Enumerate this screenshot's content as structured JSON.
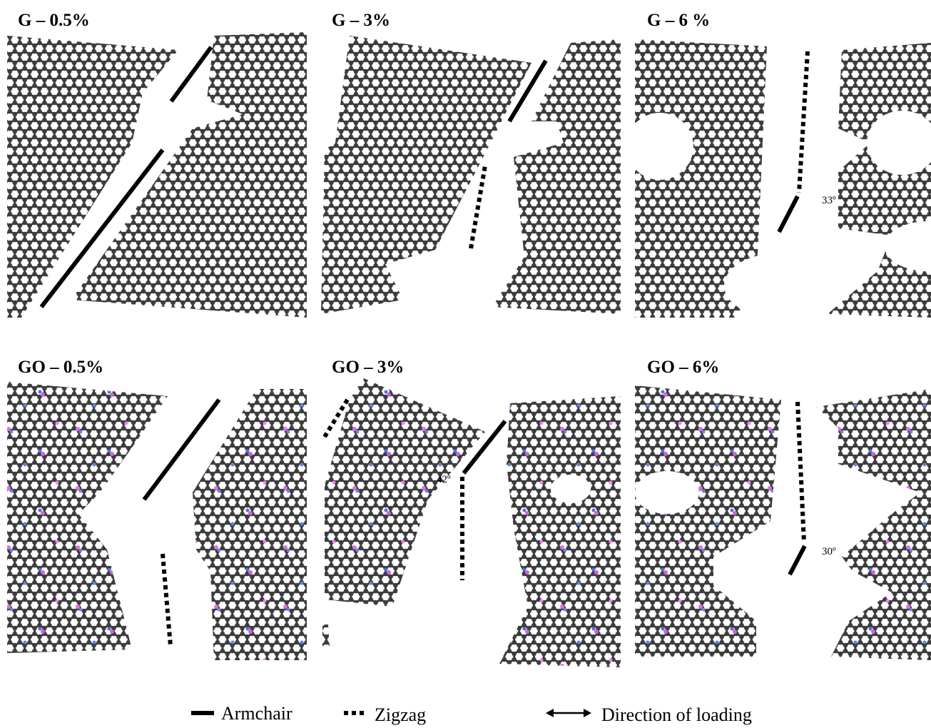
{
  "panels": [
    {
      "title": "G – 0.5%"
    },
    {
      "title": "G – 3%"
    },
    {
      "title": "G – 6 %",
      "angle": "33º"
    },
    {
      "title": "GO – 0.5%"
    },
    {
      "title": "GO – 3%",
      "angle": "42º"
    },
    {
      "title": "GO – 6%",
      "angle": "30º"
    }
  ],
  "legend": {
    "armchair": "Armchair",
    "zigzag": "Zigzag",
    "loading": "Direction of loading"
  }
}
